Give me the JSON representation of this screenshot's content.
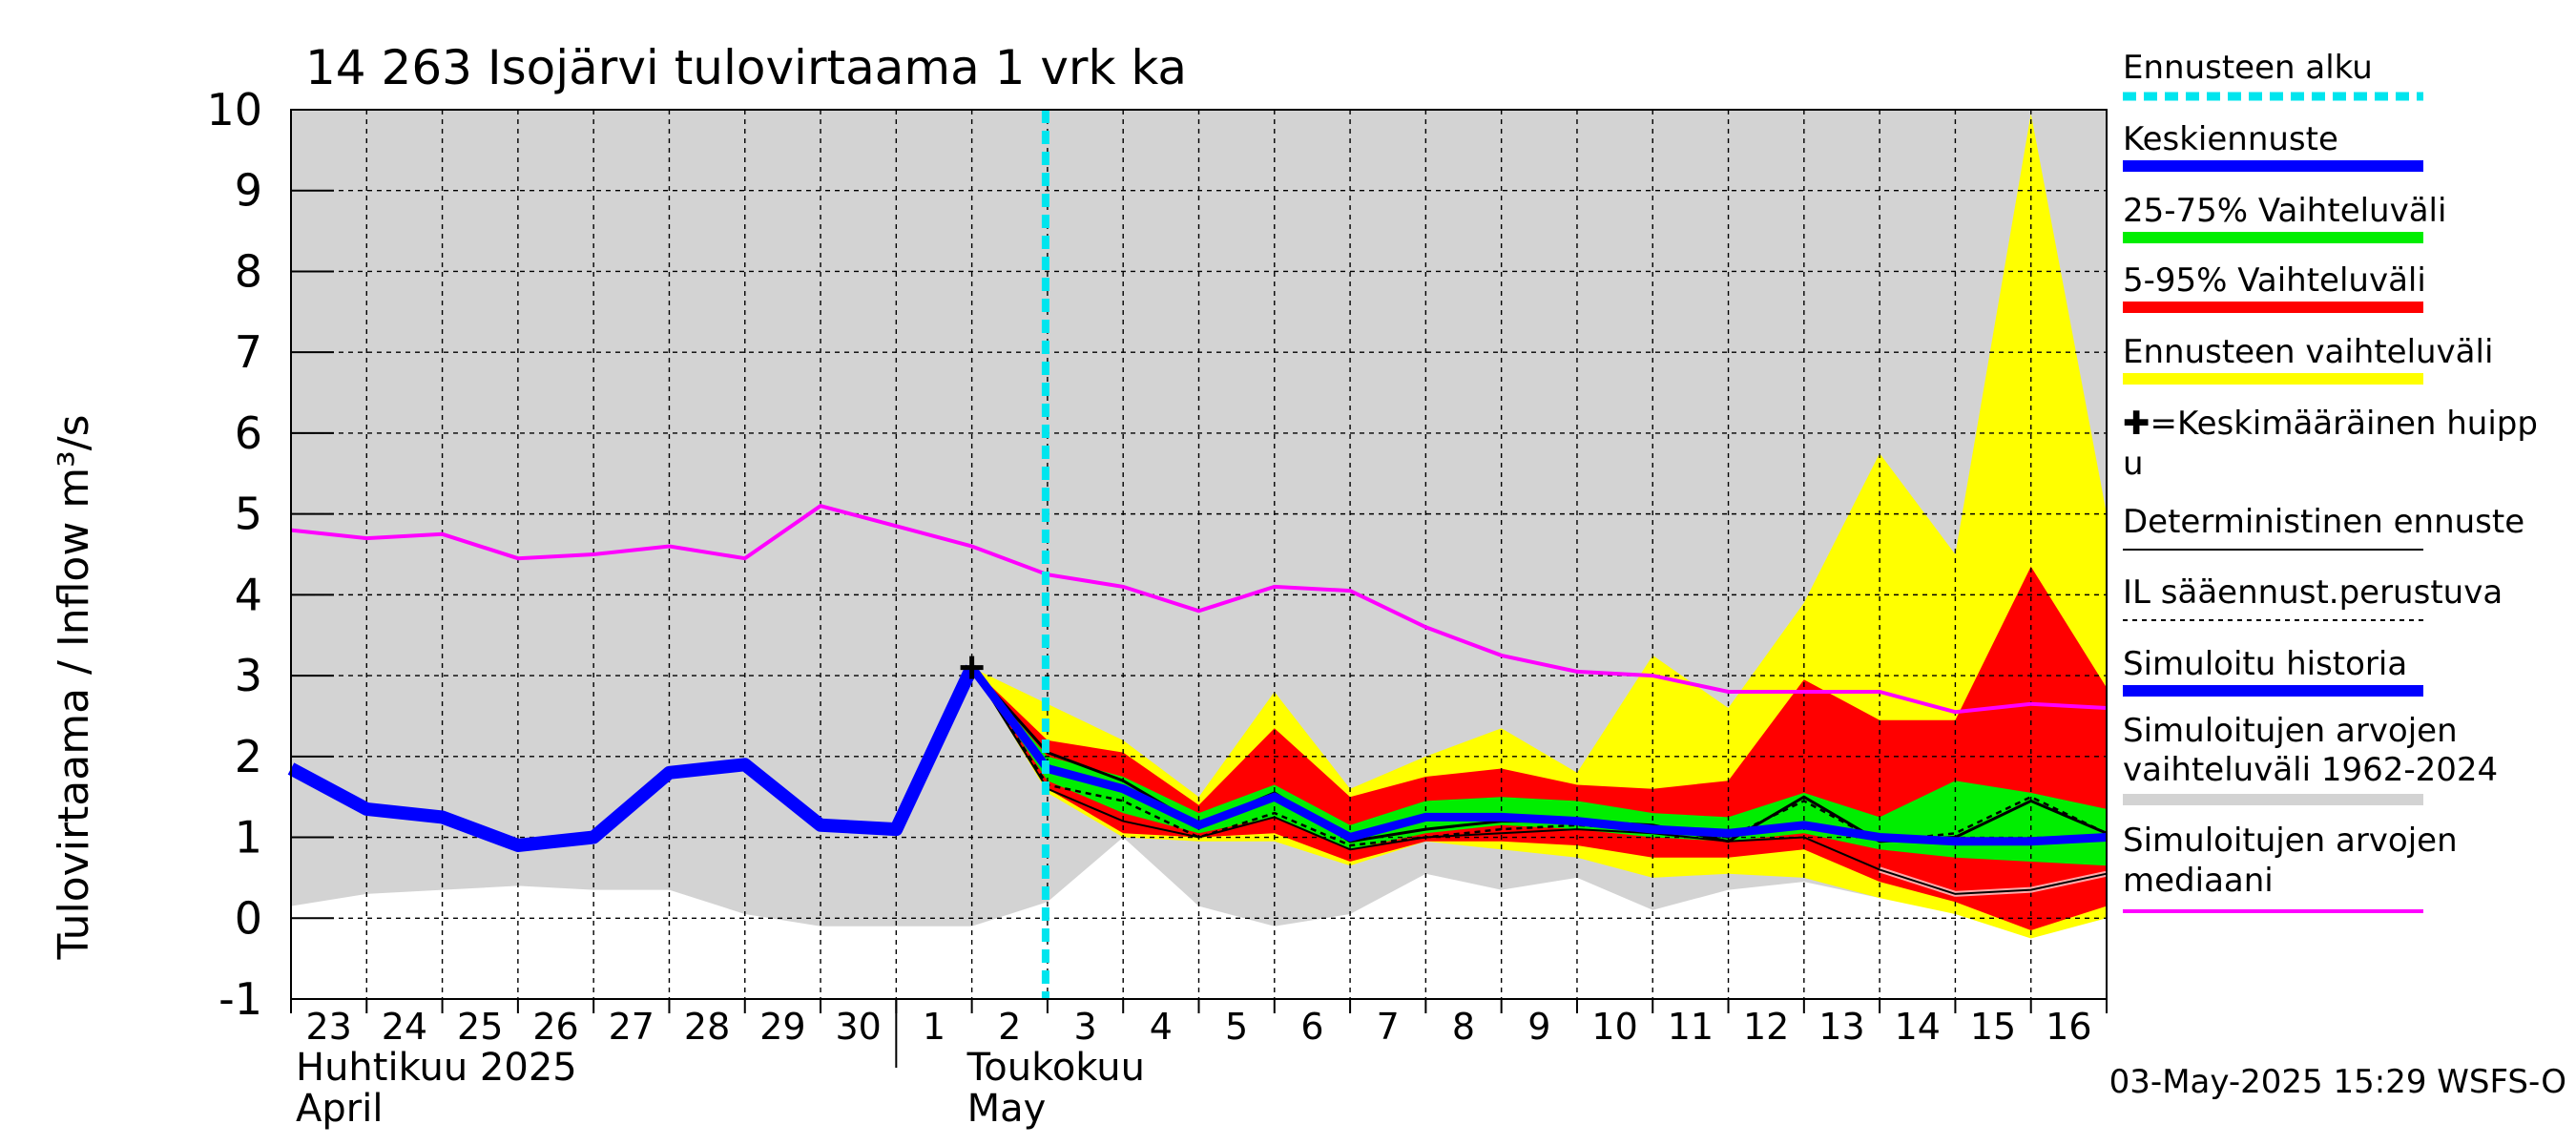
{
  "chart_data": {
    "type": "line",
    "title": "14 263 Isojärvi tulovirtaama 1 vrk ka",
    "ylabel": "Tulovirtaama / Inflow    m³/s",
    "ylim": [
      -1,
      10
    ],
    "yticks": [
      -1,
      0,
      1,
      2,
      3,
      4,
      5,
      6,
      7,
      8,
      9,
      10
    ],
    "x_day_index_range": [
      0,
      24
    ],
    "x_tick_labels": [
      "23",
      "24",
      "25",
      "26",
      "27",
      "28",
      "29",
      "30",
      "1",
      "2",
      "3",
      "4",
      "5",
      "6",
      "7",
      "8",
      "9",
      "10",
      "11",
      "12",
      "13",
      "14",
      "15",
      "16"
    ],
    "x_axis_month_labels": [
      {
        "line1": "Huhtikuu  2025",
        "line2": "April"
      },
      {
        "line1": "Toukokuu",
        "line2": "May"
      }
    ],
    "forecast_start_day_index": 10,
    "grid": true,
    "legend_placement": "right",
    "timestamp": "03-May-2025 15:29 WSFS-O",
    "colors": {
      "history_band": "#d3d3d3",
      "forecast_range": "#ffff00",
      "p5_95": "#ff0000",
      "p25_75": "#00ee00",
      "mean_forecast": "#0000ff",
      "simulated_history": "#0000ff",
      "median": "#ff00ff",
      "forecast_start": "#00e5ee",
      "deterministic": "#000000"
    },
    "simulated_history_band": {
      "x": [
        0,
        1,
        2,
        3,
        4,
        5,
        6,
        7,
        8,
        9,
        10,
        11,
        12,
        13,
        14,
        15,
        16,
        17,
        18,
        19,
        20,
        21,
        22,
        23,
        24
      ],
      "low": [
        0.15,
        0.3,
        0.35,
        0.4,
        0.35,
        0.35,
        0.05,
        -0.1,
        -0.1,
        -0.1,
        0.2,
        1.0,
        0.15,
        -0.1,
        0.05,
        0.55,
        0.35,
        0.5,
        0.1,
        0.35,
        0.45,
        0.25,
        0.3,
        0.3,
        0.25
      ],
      "high": [
        10,
        10,
        10,
        10,
        10,
        10,
        10,
        10,
        10,
        10,
        10,
        10,
        10,
        10,
        10,
        10,
        10,
        10,
        10,
        10,
        10,
        10,
        10,
        10,
        10
      ]
    },
    "series": [
      {
        "name": "Simuloitu historia",
        "x": [
          0,
          1,
          2,
          3,
          4,
          5,
          6,
          7,
          8,
          9
        ],
        "y": [
          1.85,
          1.35,
          1.25,
          0.9,
          1.0,
          1.8,
          1.9,
          1.15,
          1.1,
          3.1
        ]
      },
      {
        "name": "Simuloitujen arvojen mediaani",
        "x": [
          0,
          1,
          2,
          3,
          4,
          5,
          6,
          7,
          8,
          9,
          10,
          11,
          12,
          13,
          14,
          15,
          16,
          17,
          18,
          19,
          20,
          21,
          22,
          23,
          24
        ],
        "y": [
          4.8,
          4.7,
          4.75,
          4.45,
          4.5,
          4.6,
          4.45,
          5.1,
          4.85,
          4.6,
          4.25,
          4.1,
          3.8,
          4.1,
          4.05,
          3.6,
          3.25,
          3.05,
          3.0,
          2.8,
          2.8,
          2.8,
          2.55,
          2.65,
          2.6
        ]
      },
      {
        "name": "Keskiennuste",
        "x": [
          9,
          10,
          11,
          12,
          13,
          14,
          15,
          16,
          17,
          18,
          19,
          20,
          21,
          22,
          23,
          24
        ],
        "y": [
          3.1,
          1.85,
          1.6,
          1.15,
          1.5,
          1.0,
          1.25,
          1.25,
          1.2,
          1.1,
          1.05,
          1.15,
          1.0,
          0.95,
          0.95,
          1.0
        ]
      },
      {
        "name": "Deterministinen ennuste",
        "x": [
          9,
          10,
          11,
          12,
          13,
          14,
          15,
          16,
          17,
          18,
          19,
          20,
          21,
          22,
          23,
          24
        ],
        "y": [
          3.1,
          2.05,
          1.7,
          1.15,
          1.55,
          0.95,
          1.1,
          1.2,
          1.2,
          1.15,
          0.95,
          1.5,
          0.95,
          1.0,
          1.45,
          1.05
        ]
      },
      {
        "name": "IL sääennust.perustuva",
        "x": [
          9,
          10,
          11,
          12,
          13,
          14,
          15,
          16,
          17,
          18,
          19,
          20,
          21,
          22,
          23,
          24
        ],
        "y": [
          3.1,
          1.65,
          1.45,
          1.0,
          1.3,
          0.9,
          1.0,
          1.1,
          1.15,
          1.1,
          1.0,
          1.45,
          0.95,
          1.05,
          1.5,
          1.05
        ]
      },
      {
        "name": "Deterministic lower",
        "x": [
          9,
          10,
          11,
          12,
          13,
          14,
          15,
          16,
          17,
          18,
          19,
          20,
          21,
          22,
          23,
          24
        ],
        "y": [
          3.1,
          1.6,
          1.2,
          1.0,
          1.25,
          0.85,
          1.0,
          1.05,
          1.1,
          1.05,
          0.95,
          1.0,
          0.6,
          0.3,
          0.35,
          0.55
        ]
      }
    ],
    "bands": [
      {
        "name": "Ennusteen vaihteluväli",
        "x": [
          9,
          10,
          11,
          12,
          13,
          14,
          15,
          16,
          17,
          18,
          19,
          20,
          21,
          22,
          23,
          24
        ],
        "low": [
          3.1,
          1.55,
          1.0,
          0.95,
          0.95,
          0.65,
          0.95,
          0.85,
          0.75,
          0.5,
          0.55,
          0.5,
          0.25,
          0.05,
          -0.25,
          0.0
        ],
        "high": [
          3.1,
          2.65,
          2.2,
          1.5,
          2.8,
          1.6,
          2.0,
          2.35,
          1.8,
          3.25,
          2.6,
          3.9,
          5.75,
          4.5,
          9.95,
          5.0
        ]
      },
      {
        "name": "5-95% Vaihteluväli",
        "x": [
          9,
          10,
          11,
          12,
          13,
          14,
          15,
          16,
          17,
          18,
          19,
          20,
          21,
          22,
          23,
          24
        ],
        "low": [
          3.1,
          1.6,
          1.05,
          1.0,
          1.05,
          0.7,
          0.95,
          0.95,
          0.9,
          0.75,
          0.75,
          0.85,
          0.45,
          0.2,
          -0.15,
          0.15
        ],
        "high": [
          3.1,
          2.2,
          2.05,
          1.4,
          2.35,
          1.5,
          1.75,
          1.85,
          1.65,
          1.6,
          1.7,
          2.95,
          2.45,
          2.45,
          4.35,
          2.85
        ]
      },
      {
        "name": "25-75% Vaihteluväli",
        "x": [
          9,
          10,
          11,
          12,
          13,
          14,
          15,
          16,
          17,
          18,
          19,
          20,
          21,
          22,
          23,
          24
        ],
        "low": [
          3.1,
          1.7,
          1.3,
          1.05,
          1.25,
          0.85,
          1.05,
          1.15,
          1.1,
          1.0,
          0.95,
          1.05,
          0.85,
          0.75,
          0.7,
          0.65
        ],
        "high": [
          3.1,
          2.0,
          1.75,
          1.3,
          1.65,
          1.15,
          1.45,
          1.5,
          1.45,
          1.3,
          1.25,
          1.55,
          1.25,
          1.7,
          1.55,
          1.35
        ]
      }
    ],
    "peak_marker": {
      "x": 9,
      "y": 3.1,
      "symbol": "+"
    }
  },
  "legend": {
    "items": [
      {
        "label": "Ennusteen alku",
        "color": "#00e5ee",
        "style": "dashed-thick"
      },
      {
        "label": "Keskiennuste",
        "color": "#0000ff",
        "style": "solid-thick"
      },
      {
        "label": "25-75% Vaihteluväli",
        "color": "#00ee00",
        "style": "solid-thick"
      },
      {
        "label": "5-95% Vaihteluväli",
        "color": "#ff0000",
        "style": "solid-thick"
      },
      {
        "label": "Ennusteen vaihteluväli",
        "color": "#ffff00",
        "style": "solid-thick"
      },
      {
        "label": "✚=Keskimääräinen huipp",
        "label2": "u",
        "color": "",
        "style": "none"
      },
      {
        "label": "Deterministinen ennuste",
        "color": "#000000",
        "style": "solid-thin"
      },
      {
        "label": "IL sääennust.perustuva",
        "color": "#000000",
        "style": "dotted-thin"
      },
      {
        "label": "Simuloitu historia",
        "color": "#0000ff",
        "style": "solid-thick"
      },
      {
        "label": "Simuloitujen arvojen",
        "label2": "vaihteluväli 1962-2024",
        "color": "#d3d3d3",
        "style": "solid-thick"
      },
      {
        "label": "Simuloitujen arvojen",
        "label2": "mediaani",
        "color": "#ff00ff",
        "style": "solid-medium"
      }
    ]
  }
}
